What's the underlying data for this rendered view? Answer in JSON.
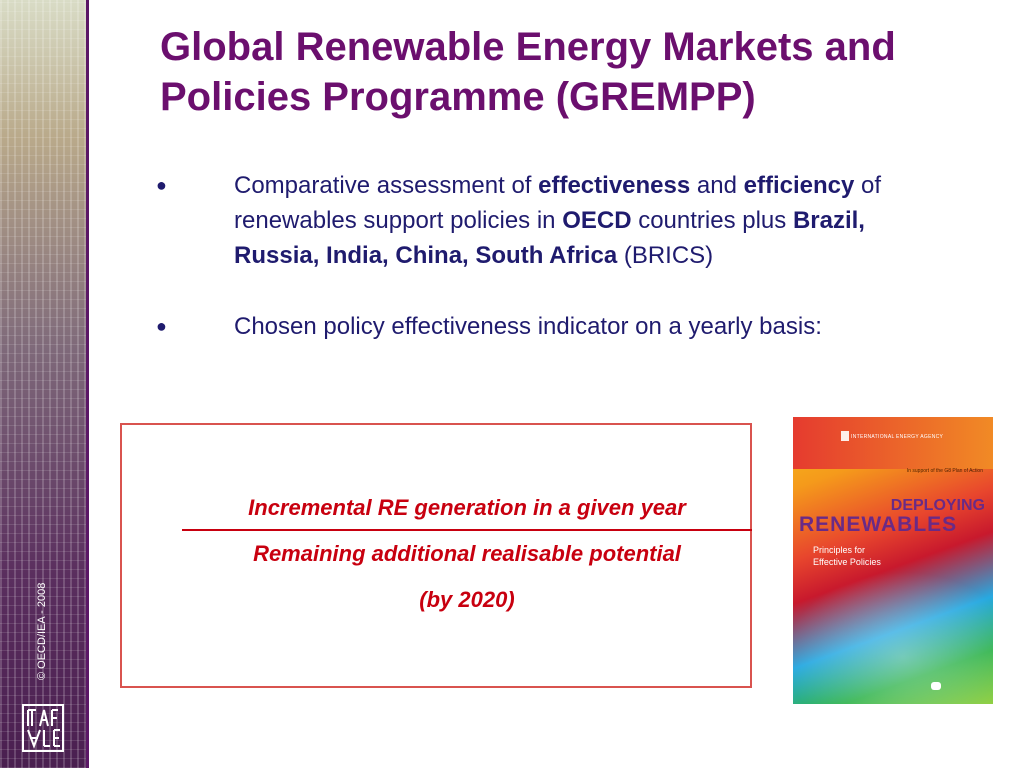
{
  "slide": {
    "title": "Global Renewable Energy Markets and Policies Programme (GREMPP)",
    "copyright": "© OECD/IEA - 2008"
  },
  "bullets": [
    {
      "segments": [
        {
          "text": "Comparative assessment of ",
          "bold": false
        },
        {
          "text": "effectiveness",
          "bold": true
        },
        {
          "text": " and ",
          "bold": false
        },
        {
          "text": "efficiency",
          "bold": true
        },
        {
          "text": " of renewables support policies in ",
          "bold": false
        },
        {
          "text": "OECD",
          "bold": true
        },
        {
          "text": " countries plus ",
          "bold": false
        },
        {
          "text": "Brazil, Russia, India, China, South Africa",
          "bold": true
        },
        {
          "text": " (BRICS)",
          "bold": false
        }
      ]
    },
    {
      "segments": [
        {
          "text": "Chosen policy effectiveness indicator on a yearly basis:",
          "bold": false
        }
      ]
    }
  ],
  "formula": {
    "numerator": "Incremental RE generation in a given year",
    "denominator": "Remaining additional realisable potential",
    "note": "(by 2020)"
  },
  "cover": {
    "agency": "INTERNATIONAL ENERGY AGENCY",
    "support": "In support of the G8 Plan of Action",
    "title_line1": "DEPLOYING",
    "title_line2": "RENEWABLES",
    "subtitle_line1": "Principles for",
    "subtitle_line2": "Effective Policies"
  },
  "colors": {
    "title": "#6b0f6e",
    "body_text": "#1f1b6e",
    "formula_red": "#c8000f",
    "box_border": "#d9534f",
    "strip_border": "#5b1766"
  },
  "icons": {
    "logo": "oecd-iea-logo-icon",
    "bullet": "bullet-dot-icon"
  }
}
